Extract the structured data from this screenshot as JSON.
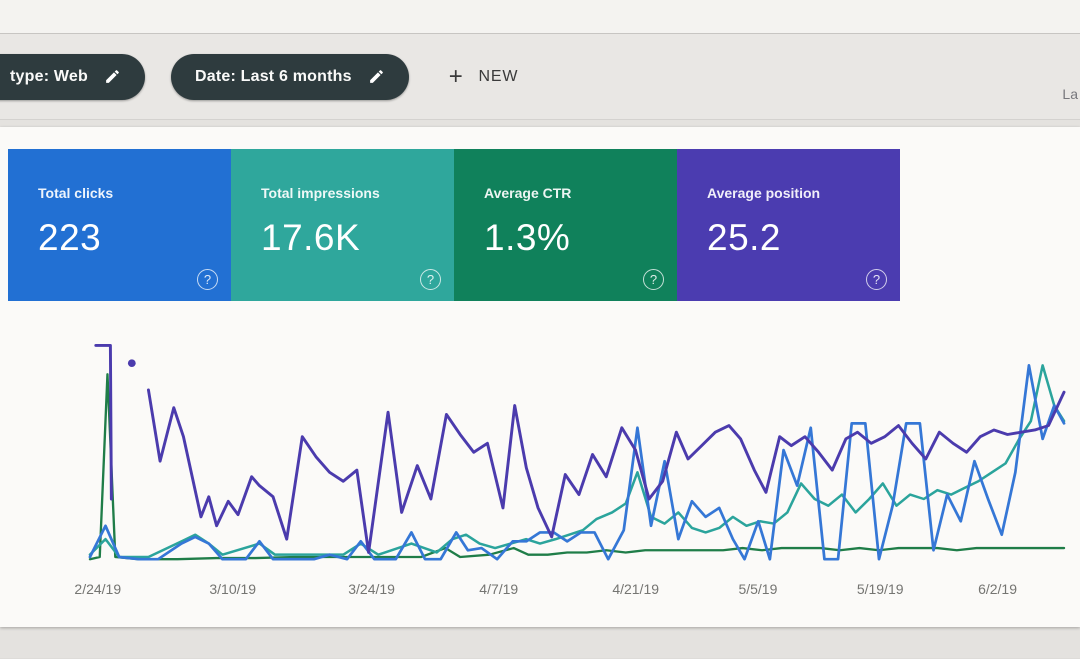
{
  "topbar": {},
  "filter_bar": {
    "chips": [
      {
        "label": "type: Web",
        "icon": "edit-pencil-icon"
      },
      {
        "label": "Date: Last 6 months",
        "icon": "edit-pencil-icon"
      }
    ],
    "new_button": {
      "icon": "plus-icon",
      "plus_char": "+",
      "label": "NEW"
    },
    "truncated_right_text": "La"
  },
  "cards": [
    {
      "label": "Total clicks",
      "value": "223",
      "color": "#2270d3",
      "help_char": "?"
    },
    {
      "label": "Total impressions",
      "value": "17.6K",
      "color": "#2fa79c",
      "help_char": "?"
    },
    {
      "label": "Average CTR",
      "value": "1.3%",
      "color": "#10815b",
      "help_char": "?"
    },
    {
      "label": "Average position",
      "value": "25.2",
      "color": "#4b3cb0",
      "help_char": "?"
    }
  ],
  "chart_data": {
    "type": "line",
    "title": "",
    "xlabel": "",
    "ylabel": "",
    "grid": false,
    "legend": "none visible",
    "y_axis_note": "no y-axis tick labels visible; values are estimated percent of plot height (0=baseline, 100=top)",
    "x_ticks": [
      {
        "label": "2/24/19",
        "x": 1.0
      },
      {
        "label": "3/10/19",
        "x": 14.8
      },
      {
        "label": "3/24/19",
        "x": 29.0
      },
      {
        "label": "4/7/19",
        "x": 42.0
      },
      {
        "label": "4/21/19",
        "x": 56.0
      },
      {
        "label": "5/5/19",
        "x": 68.5
      },
      {
        "label": "5/19/19",
        "x": 81.0
      },
      {
        "label": "6/2/19",
        "x": 93.0
      }
    ],
    "series": [
      {
        "name": "green",
        "color": "#1f7d48",
        "width": 2.4,
        "points": [
          [
            0,
            1
          ],
          [
            1,
            2
          ],
          [
            1.8,
            84
          ],
          [
            2.6,
            2
          ],
          [
            5,
            1
          ],
          [
            9,
            1
          ],
          [
            13,
            1.5
          ],
          [
            17,
            1.5
          ],
          [
            21,
            2
          ],
          [
            25,
            2
          ],
          [
            28,
            2
          ],
          [
            31,
            2
          ],
          [
            34,
            2
          ],
          [
            36.5,
            6
          ],
          [
            38,
            2
          ],
          [
            41,
            3
          ],
          [
            43.5,
            6
          ],
          [
            45,
            3
          ],
          [
            47,
            3
          ],
          [
            49,
            4
          ],
          [
            51,
            4
          ],
          [
            53,
            5
          ],
          [
            55,
            4
          ],
          [
            57,
            5
          ],
          [
            59,
            5
          ],
          [
            61,
            5
          ],
          [
            63,
            5
          ],
          [
            65,
            5
          ],
          [
            67,
            6
          ],
          [
            69,
            5
          ],
          [
            71,
            6
          ],
          [
            73,
            6
          ],
          [
            75,
            6
          ],
          [
            77,
            5
          ],
          [
            79,
            6
          ],
          [
            81,
            5
          ],
          [
            83,
            6
          ],
          [
            85,
            6
          ],
          [
            87,
            6
          ],
          [
            89,
            5
          ],
          [
            91,
            6
          ],
          [
            93,
            6
          ],
          [
            95,
            6
          ],
          [
            97,
            6
          ],
          [
            100,
            6
          ]
        ]
      },
      {
        "name": "teal",
        "color": "#2ba49c",
        "width": 2.6,
        "points": [
          [
            0,
            3
          ],
          [
            1.6,
            10
          ],
          [
            3,
            2
          ],
          [
            6,
            2
          ],
          [
            9.4,
            9
          ],
          [
            10.8,
            12
          ],
          [
            12.2,
            8
          ],
          [
            13.6,
            3
          ],
          [
            17.4,
            8
          ],
          [
            19,
            3
          ],
          [
            22,
            3
          ],
          [
            26,
            3
          ],
          [
            27.8,
            8
          ],
          [
            29.6,
            3
          ],
          [
            33,
            8
          ],
          [
            35.6,
            4
          ],
          [
            37.2,
            10
          ],
          [
            38.6,
            12
          ],
          [
            40,
            8
          ],
          [
            41.6,
            6
          ],
          [
            43.2,
            8
          ],
          [
            44.8,
            10
          ],
          [
            46.2,
            8
          ],
          [
            47.8,
            10
          ],
          [
            49.2,
            12
          ],
          [
            50.6,
            14
          ],
          [
            52,
            19
          ],
          [
            53.6,
            22
          ],
          [
            55,
            26
          ],
          [
            56.2,
            40
          ],
          [
            57.6,
            20
          ],
          [
            59,
            17
          ],
          [
            60.4,
            22
          ],
          [
            61.8,
            15
          ],
          [
            63.2,
            13
          ],
          [
            64.6,
            15
          ],
          [
            66,
            20
          ],
          [
            67.4,
            16
          ],
          [
            68.8,
            18
          ],
          [
            70.2,
            17
          ],
          [
            71.6,
            22
          ],
          [
            73,
            35
          ],
          [
            74.4,
            28
          ],
          [
            75.8,
            25
          ],
          [
            77.2,
            30
          ],
          [
            78.6,
            22
          ],
          [
            80,
            28
          ],
          [
            81.4,
            35
          ],
          [
            82.8,
            25
          ],
          [
            84.2,
            30
          ],
          [
            85.6,
            28
          ],
          [
            87,
            32
          ],
          [
            88.4,
            30
          ],
          [
            89.8,
            33
          ],
          [
            91.2,
            36
          ],
          [
            92.6,
            40
          ],
          [
            94,
            44
          ],
          [
            95.4,
            55
          ],
          [
            96.6,
            63
          ],
          [
            97.8,
            88
          ],
          [
            99,
            70
          ],
          [
            100,
            63
          ]
        ]
      },
      {
        "name": "blue",
        "color": "#3577d6",
        "width": 2.8,
        "points": [
          [
            0,
            2
          ],
          [
            1.6,
            16
          ],
          [
            3,
            2
          ],
          [
            5,
            1
          ],
          [
            7,
            1
          ],
          [
            9.4,
            8
          ],
          [
            10.8,
            11
          ],
          [
            12.2,
            8
          ],
          [
            13.6,
            1
          ],
          [
            16,
            1
          ],
          [
            17.4,
            9
          ],
          [
            18.8,
            1
          ],
          [
            21,
            1
          ],
          [
            23,
            1
          ],
          [
            24.6,
            3
          ],
          [
            26.4,
            1
          ],
          [
            27.8,
            9
          ],
          [
            29.2,
            1
          ],
          [
            31.4,
            1
          ],
          [
            33,
            13
          ],
          [
            34.4,
            1
          ],
          [
            36,
            1
          ],
          [
            37.6,
            13
          ],
          [
            38.8,
            5
          ],
          [
            40.2,
            6
          ],
          [
            41.8,
            1
          ],
          [
            43.4,
            9
          ],
          [
            44.8,
            9
          ],
          [
            46.2,
            13
          ],
          [
            47.6,
            13
          ],
          [
            49,
            9
          ],
          [
            50.4,
            13
          ],
          [
            51.8,
            13
          ],
          [
            53.2,
            1
          ],
          [
            54.8,
            14
          ],
          [
            56.2,
            60
          ],
          [
            57.6,
            16
          ],
          [
            59,
            45
          ],
          [
            60.4,
            10
          ],
          [
            61.8,
            27
          ],
          [
            63.2,
            20
          ],
          [
            64.6,
            24
          ],
          [
            66,
            10
          ],
          [
            67.2,
            1
          ],
          [
            68.6,
            18
          ],
          [
            69.8,
            1
          ],
          [
            71.2,
            50
          ],
          [
            72.6,
            34
          ],
          [
            74,
            60
          ],
          [
            75.4,
            1
          ],
          [
            76.8,
            1
          ],
          [
            78.2,
            62
          ],
          [
            79.6,
            62
          ],
          [
            81,
            1
          ],
          [
            82.4,
            25
          ],
          [
            83.8,
            62
          ],
          [
            85.2,
            62
          ],
          [
            86.6,
            5
          ],
          [
            88,
            30
          ],
          [
            89.4,
            18
          ],
          [
            90.8,
            45
          ],
          [
            92.2,
            28
          ],
          [
            93.6,
            12
          ],
          [
            95,
            40
          ],
          [
            96.4,
            88
          ],
          [
            97.8,
            55
          ],
          [
            99,
            70
          ],
          [
            100,
            62
          ]
        ]
      },
      {
        "name": "purple",
        "color": "#4b3bad",
        "width": 3,
        "segments": [
          [
            [
              0.6,
              97
            ],
            [
              2.1,
              97
            ],
            [
              2.2,
              28
            ]
          ],
          [
            [
              6,
              77
            ],
            [
              7.2,
              45
            ],
            [
              8.6,
              69
            ],
            [
              9.6,
              56
            ],
            [
              11.4,
              20
            ],
            [
              12.2,
              29
            ],
            [
              13,
              16
            ],
            [
              14.2,
              27
            ],
            [
              15.2,
              21
            ],
            [
              16.6,
              38
            ],
            [
              17.4,
              34
            ],
            [
              18.8,
              29
            ],
            [
              20.2,
              10
            ],
            [
              21.8,
              56
            ],
            [
              23.2,
              47
            ],
            [
              24.6,
              40
            ],
            [
              26,
              36
            ],
            [
              27.4,
              41
            ],
            [
              28.6,
              4
            ],
            [
              30.6,
              67
            ],
            [
              32,
              22
            ],
            [
              33.6,
              43
            ],
            [
              35,
              28
            ],
            [
              36.6,
              66
            ],
            [
              38,
              57
            ],
            [
              39.4,
              49
            ],
            [
              40.8,
              53
            ],
            [
              42.4,
              24
            ],
            [
              43.6,
              70
            ],
            [
              44.8,
              42
            ],
            [
              46,
              24
            ],
            [
              47.4,
              11
            ],
            [
              48.8,
              39
            ],
            [
              50.2,
              30
            ],
            [
              51.6,
              48
            ],
            [
              53,
              38
            ],
            [
              54.6,
              60
            ],
            [
              56,
              50
            ],
            [
              57.4,
              28
            ],
            [
              58.8,
              36
            ],
            [
              60.2,
              58
            ],
            [
              61.4,
              46
            ],
            [
              62.8,
              52
            ],
            [
              64.2,
              58
            ],
            [
              65.6,
              61
            ],
            [
              66.8,
              55
            ],
            [
              68.2,
              41
            ],
            [
              69.4,
              31
            ],
            [
              70.8,
              56
            ],
            [
              72,
              52
            ],
            [
              73.4,
              56
            ],
            [
              74.8,
              49
            ],
            [
              76.2,
              41
            ],
            [
              77.6,
              55
            ],
            [
              78.8,
              58
            ],
            [
              80.2,
              53
            ],
            [
              81.6,
              56
            ],
            [
              83,
              61
            ],
            [
              84.4,
              53
            ],
            [
              85.8,
              46
            ],
            [
              87.2,
              58
            ],
            [
              88.6,
              53
            ],
            [
              90,
              49
            ],
            [
              91.4,
              56
            ],
            [
              92.8,
              59
            ],
            [
              94.2,
              57
            ],
            [
              95.6,
              58
            ],
            [
              97,
              59
            ],
            [
              98.4,
              61
            ],
            [
              100,
              76
            ]
          ]
        ],
        "dot": [
          4.3,
          89
        ]
      }
    ]
  }
}
